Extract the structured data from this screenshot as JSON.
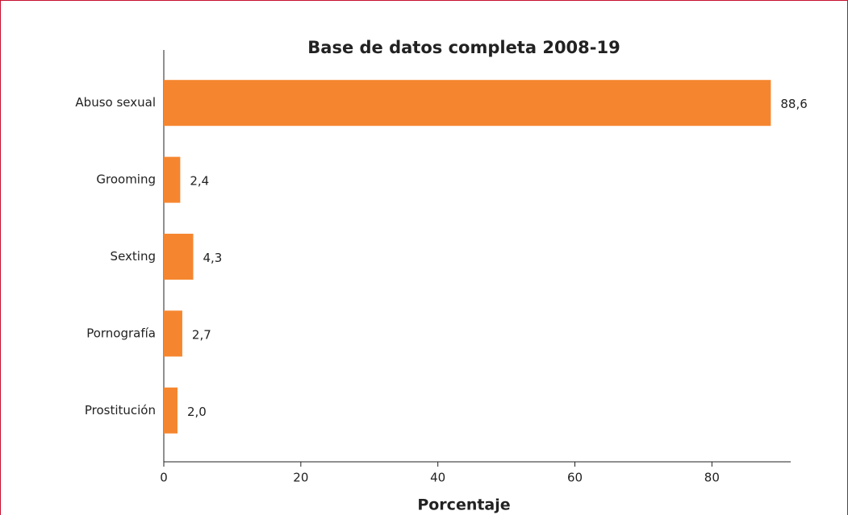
{
  "chart_data": {
    "type": "bar",
    "orientation": "horizontal",
    "title": "Base de datos completa 2008-19",
    "x_label": "Porcentaje",
    "categories": [
      "Abuso sexual",
      "Grooming",
      "Sexting",
      "Pornografía",
      "Prostitución"
    ],
    "values": [
      88.6,
      2.4,
      4.3,
      2.7,
      2.0
    ],
    "value_labels": [
      "88,6",
      "2,4",
      "4,3",
      "2,7",
      "2,0"
    ],
    "color": "#f5862f",
    "xlim": [
      0,
      91.5
    ],
    "xticks": [
      0,
      20,
      40,
      60,
      80
    ],
    "grid": false
  }
}
